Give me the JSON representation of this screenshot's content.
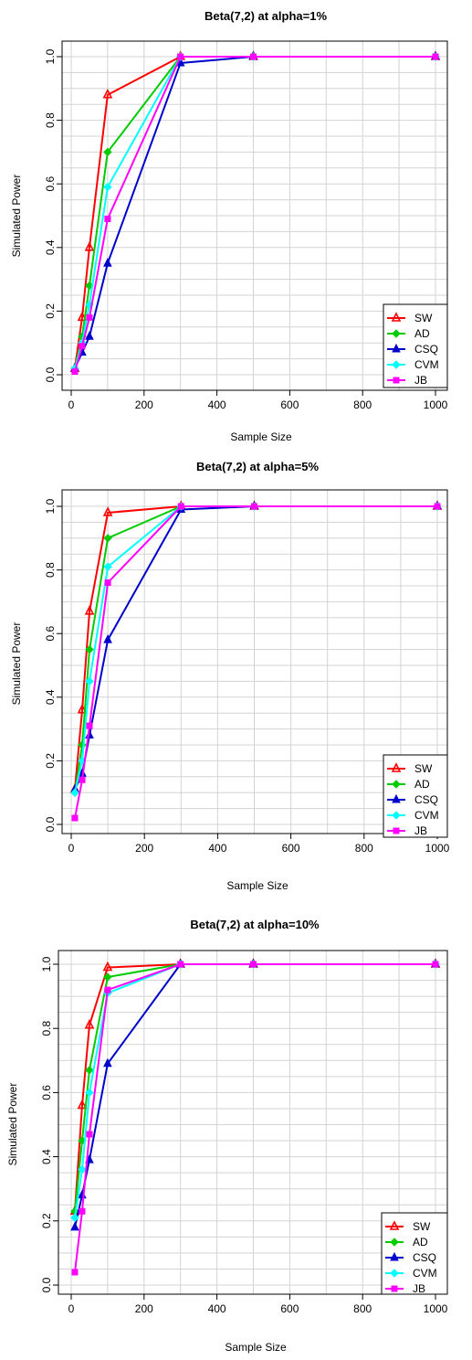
{
  "chart_data": [
    {
      "type": "line",
      "title": "Beta(7,2) at alpha=1%",
      "xlabel": "Sample Size",
      "ylabel": "Simulated Power",
      "xlim": [
        0,
        1000
      ],
      "ylim": [
        0,
        1
      ],
      "xticks": [
        "0",
        "200",
        "400",
        "600",
        "800",
        "1000"
      ],
      "yticks": [
        "0.0",
        "0.2",
        "0.4",
        "0.6",
        "0.8",
        "1.0"
      ],
      "grid": true,
      "legend": "bottom-right",
      "x": [
        10,
        30,
        50,
        100,
        300,
        500,
        1000
      ],
      "series": [
        {
          "name": "SW",
          "color": "#ff0000",
          "marker": "triangle-open",
          "values": [
            0.02,
            0.18,
            0.4,
            0.88,
            1.0,
            1.0,
            1.0
          ]
        },
        {
          "name": "AD",
          "color": "#00cc00",
          "marker": "diamond",
          "values": [
            0.02,
            0.12,
            0.28,
            0.7,
            1.0,
            1.0,
            1.0
          ]
        },
        {
          "name": "CSQ",
          "color": "#0000cc",
          "marker": "triangle",
          "values": [
            0.02,
            0.07,
            0.12,
            0.35,
            0.98,
            1.0,
            1.0
          ]
        },
        {
          "name": "CVM",
          "color": "#00ffff",
          "marker": "diamond",
          "values": [
            0.02,
            0.1,
            0.22,
            0.59,
            1.0,
            1.0,
            1.0
          ]
        },
        {
          "name": "JB",
          "color": "#ff00ff",
          "marker": "square",
          "values": [
            0.01,
            0.09,
            0.18,
            0.49,
            1.0,
            1.0,
            1.0
          ]
        }
      ]
    },
    {
      "type": "line",
      "title": "Beta(7,2) at alpha=5%",
      "xlabel": "Sample Size",
      "ylabel": "Simulated Power",
      "xlim": [
        0,
        1000
      ],
      "ylim": [
        0,
        1
      ],
      "xticks": [
        "0",
        "200",
        "400",
        "600",
        "800",
        "1000"
      ],
      "yticks": [
        "0.0",
        "0.2",
        "0.4",
        "0.6",
        "0.8",
        "1.0"
      ],
      "grid": true,
      "legend": "bottom-right",
      "x": [
        10,
        30,
        50,
        100,
        300,
        500,
        1000
      ],
      "series": [
        {
          "name": "SW",
          "color": "#ff0000",
          "marker": "triangle-open",
          "values": [
            0.11,
            0.36,
            0.67,
            0.98,
            1.0,
            1.0,
            1.0
          ]
        },
        {
          "name": "AD",
          "color": "#00cc00",
          "marker": "diamond",
          "values": [
            0.1,
            0.25,
            0.55,
            0.9,
            1.0,
            1.0,
            1.0
          ]
        },
        {
          "name": "CSQ",
          "color": "#0000cc",
          "marker": "triangle",
          "values": [
            0.11,
            0.16,
            0.28,
            0.58,
            0.99,
            1.0,
            1.0
          ]
        },
        {
          "name": "CVM",
          "color": "#00ffff",
          "marker": "diamond",
          "values": [
            0.1,
            0.2,
            0.45,
            0.81,
            1.0,
            1.0,
            1.0
          ]
        },
        {
          "name": "JB",
          "color": "#ff00ff",
          "marker": "square",
          "values": [
            0.02,
            0.14,
            0.31,
            0.76,
            1.0,
            1.0,
            1.0
          ]
        }
      ]
    },
    {
      "type": "line",
      "title": "Beta(7,2) at alpha=10%",
      "xlabel": "Sample Size",
      "ylabel": "Simulated Power",
      "xlim": [
        0,
        1000
      ],
      "ylim": [
        0,
        1
      ],
      "xticks": [
        "0",
        "200",
        "400",
        "600",
        "800",
        "1000"
      ],
      "yticks": [
        "0.0",
        "0.2",
        "0.4",
        "0.6",
        "0.8",
        "1.0"
      ],
      "grid": true,
      "legend": "bottom-right",
      "x": [
        10,
        30,
        50,
        100,
        300,
        500,
        1000
      ],
      "series": [
        {
          "name": "SW",
          "color": "#ff0000",
          "marker": "triangle-open",
          "values": [
            0.23,
            0.56,
            0.81,
            0.99,
            1.0,
            1.0,
            1.0
          ]
        },
        {
          "name": "AD",
          "color": "#00cc00",
          "marker": "diamond",
          "values": [
            0.23,
            0.45,
            0.67,
            0.96,
            1.0,
            1.0,
            1.0
          ]
        },
        {
          "name": "CSQ",
          "color": "#0000cc",
          "marker": "triangle",
          "values": [
            0.18,
            0.28,
            0.39,
            0.69,
            1.0,
            1.0,
            1.0
          ]
        },
        {
          "name": "CVM",
          "color": "#00ffff",
          "marker": "diamond",
          "values": [
            0.21,
            0.36,
            0.6,
            0.91,
            1.0,
            1.0,
            1.0
          ]
        },
        {
          "name": "JB",
          "color": "#ff00ff",
          "marker": "square",
          "values": [
            0.04,
            0.23,
            0.47,
            0.92,
            1.0,
            1.0,
            1.0
          ]
        }
      ]
    }
  ]
}
